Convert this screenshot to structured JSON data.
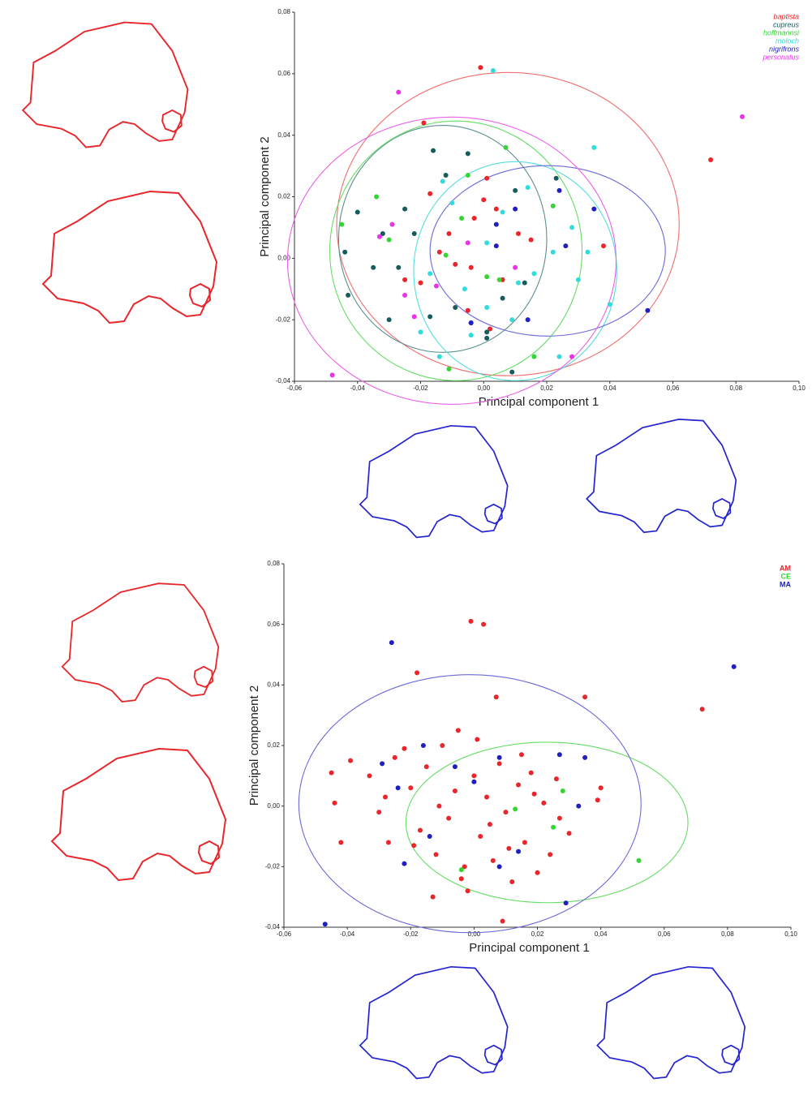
{
  "chart_data": [
    {
      "type": "scatter",
      "xlabel": "Principal component 1",
      "ylabel": "Principal component 2",
      "xlim": [
        -0.06,
        0.1
      ],
      "ylim": [
        -0.04,
        0.08
      ],
      "xticks": [
        {
          "value": -0.06,
          "label": "-0,06"
        },
        {
          "value": -0.04,
          "label": "-0,04"
        },
        {
          "value": -0.02,
          "label": "-0,02"
        },
        {
          "value": 0,
          "label": "0,00"
        },
        {
          "value": 0.02,
          "label": "0,02"
        },
        {
          "value": 0.04,
          "label": "0,04"
        },
        {
          "value": 0.06,
          "label": "0,06"
        },
        {
          "value": 0.08,
          "label": "0,08"
        },
        {
          "value": 0.1,
          "label": "0,10"
        }
      ],
      "yticks": [
        {
          "value": -0.04,
          "label": "-0,04"
        },
        {
          "value": -0.02,
          "label": "-0,02"
        },
        {
          "value": 0,
          "label": "0,00"
        },
        {
          "value": 0.02,
          "label": "0,02"
        },
        {
          "value": 0.04,
          "label": "0,04"
        },
        {
          "value": 0.06,
          "label": "0,06"
        },
        {
          "value": 0.08,
          "label": "0,08"
        }
      ],
      "legend": "top-right",
      "series": [
        {
          "name": "baptista",
          "color": "#e8262b",
          "ellipse_color": "#f07070",
          "x": [
            -0.001,
            -0.019,
            0.072,
            0.002,
            0.038,
            0.011,
            -0.003,
            -0.017,
            -0.025,
            0.004,
            -0.011,
            -0.004,
            0.006,
            0.015,
            0.0,
            -0.009,
            0.001,
            -0.014,
            -0.02,
            -0.005
          ],
          "values": [
            0.062,
            0.044,
            0.032,
            -0.023,
            0.004,
            0.008,
            0.013,
            0.021,
            -0.007,
            0.016,
            0.008,
            -0.003,
            -0.007,
            0.006,
            0.019,
            -0.002,
            0.026,
            0.002,
            -0.008,
            -0.017
          ],
          "ellipse": {
            "cx": 0.0077,
            "cy": 0.0111,
            "rx": 0.0543,
            "ry": 0.0493
          }
        },
        {
          "name": "cupreus",
          "color": "#175c5c",
          "ellipse_color": "#5c8f8f",
          "x": [
            -0.016,
            -0.005,
            0.01,
            0.023,
            -0.04,
            -0.044,
            -0.043,
            -0.03,
            -0.017,
            -0.012,
            -0.032,
            -0.027,
            0.001,
            0.009,
            -0.004,
            -0.022,
            -0.009,
            0.006,
            -0.035,
            -0.025,
            0.013,
            0.001
          ],
          "values": [
            0.035,
            0.034,
            0.022,
            0.026,
            0.015,
            0.002,
            -0.012,
            -0.02,
            -0.019,
            0.027,
            0.008,
            -0.003,
            -0.024,
            -0.037,
            -0.021,
            0.008,
            -0.016,
            -0.013,
            -0.003,
            0.016,
            -0.008,
            -0.026
          ],
          "ellipse": {
            "cx": -0.013,
            "cy": 0.0063,
            "rx": 0.033,
            "ry": 0.0369
          }
        },
        {
          "name": "hoffmannsi",
          "color": "#33d633",
          "ellipse_color": "#66dd66",
          "x": [
            0.007,
            -0.034,
            -0.045,
            -0.03,
            -0.012,
            -0.005,
            0.016,
            -0.011,
            0.005,
            0.022,
            -0.007,
            0.001
          ],
          "values": [
            0.036,
            0.02,
            0.011,
            0.006,
            0.001,
            0.027,
            -0.032,
            -0.036,
            -0.007,
            0.017,
            0.013,
            -0.006
          ],
          "ellipse": {
            "cx": -0.0088,
            "cy": 0.0024,
            "rx": 0.04,
            "ry": 0.0422
          }
        },
        {
          "name": "moloch",
          "color": "#33dcdc",
          "ellipse_color": "#55dddd",
          "x": [
            0.003,
            0.035,
            -0.013,
            0.001,
            0.011,
            -0.02,
            -0.004,
            0.024,
            0.04,
            0.03,
            0.016,
            0.006,
            -0.006,
            -0.014,
            0.009,
            0.022,
            0.014,
            -0.01,
            0.001,
            0.033,
            0.028,
            -0.017
          ],
          "values": [
            0.061,
            0.036,
            0.025,
            0.005,
            -0.008,
            -0.024,
            -0.025,
            -0.032,
            -0.015,
            -0.007,
            -0.005,
            0.015,
            -0.01,
            -0.032,
            -0.02,
            0.002,
            0.023,
            0.018,
            -0.016,
            0.002,
            0.01,
            -0.005
          ],
          "ellipse": {
            "cx": 0.01,
            "cy": -0.0042,
            "rx": 0.0322,
            "ry": 0.0356
          }
        },
        {
          "name": "nigrifrons",
          "color": "#2020c0",
          "ellipse_color": "#6a6ad8",
          "x": [
            0.052,
            0.035,
            0.024,
            0.004,
            -0.004,
            0.026,
            0.01,
            0.014,
            0.004
          ],
          "values": [
            -0.017,
            0.016,
            0.022,
            0.004,
            -0.021,
            0.004,
            0.016,
            -0.02,
            0.011
          ],
          "ellipse": {
            "cx": 0.0203,
            "cy": 0.0024,
            "rx": 0.0373,
            "ry": 0.0277
          }
        },
        {
          "name": "personatus",
          "color": "#ea32ea",
          "ellipse_color": "#ea60ea",
          "x": [
            -0.027,
            0.082,
            -0.048,
            0.028,
            -0.033,
            -0.029,
            -0.025,
            -0.015,
            -0.005,
            0.01,
            -0.022
          ],
          "values": [
            0.054,
            0.046,
            -0.038,
            -0.032,
            0.007,
            0.011,
            -0.012,
            -0.009,
            0.005,
            -0.003,
            -0.019
          ],
          "ellipse": {
            "cx": -0.0101,
            "cy": -0.0008,
            "rx": 0.0521,
            "ry": 0.0467
          }
        }
      ]
    },
    {
      "type": "scatter",
      "xlabel": "Principal component 1",
      "ylabel": "Principal component 2",
      "xlim": [
        -0.06,
        0.1
      ],
      "ylim": [
        -0.04,
        0.08
      ],
      "xticks": [
        {
          "value": -0.06,
          "label": "-0,06"
        },
        {
          "value": -0.04,
          "label": "-0,04"
        },
        {
          "value": -0.02,
          "label": "-0,02"
        },
        {
          "value": 0,
          "label": "0,00"
        },
        {
          "value": 0.02,
          "label": "0,02"
        },
        {
          "value": 0.04,
          "label": "0,04"
        },
        {
          "value": 0.06,
          "label": "0,06"
        },
        {
          "value": 0.08,
          "label": "0,08"
        },
        {
          "value": 0.1,
          "label": "0,10"
        }
      ],
      "yticks": [
        {
          "value": -0.04,
          "label": "-0,04"
        },
        {
          "value": -0.02,
          "label": "-0,02"
        },
        {
          "value": 0,
          "label": "0,00"
        },
        {
          "value": 0.02,
          "label": "0,02"
        },
        {
          "value": 0.04,
          "label": "0,04"
        },
        {
          "value": 0.06,
          "label": "0,06"
        },
        {
          "value": 0.08,
          "label": "0,08"
        }
      ],
      "legend": "top-right",
      "series": [
        {
          "name": "AM",
          "color": "#e8262b",
          "ellipse_color": "#f07070",
          "x": [
            -0.001,
            0.003,
            -0.018,
            0.072,
            0.007,
            0.035,
            -0.013,
            0.009,
            -0.045,
            -0.044,
            -0.042,
            -0.039,
            0.039,
            0.04,
            -0.033,
            -0.03,
            -0.027,
            -0.025,
            -0.02,
            -0.017,
            -0.015,
            -0.012,
            -0.01,
            -0.008,
            -0.005,
            -0.003,
            0.0,
            0.002,
            0.004,
            0.006,
            0.008,
            0.01,
            0.012,
            0.014,
            0.016,
            0.018,
            0.02,
            0.022,
            0.024,
            0.026,
            -0.022,
            -0.019,
            -0.006,
            0.005,
            0.015,
            0.03,
            -0.028,
            -0.004,
            0.011,
            0.019,
            -0.011,
            0.001,
            0.027,
            -0.002
          ],
          "values": [
            0.061,
            0.06,
            0.044,
            0.032,
            0.036,
            0.036,
            -0.03,
            -0.038,
            0.011,
            0.001,
            -0.012,
            0.015,
            0.002,
            0.006,
            0.01,
            -0.002,
            -0.012,
            0.016,
            0.006,
            -0.008,
            0.013,
            -0.016,
            0.02,
            -0.004,
            0.025,
            -0.02,
            0.01,
            -0.01,
            0.003,
            -0.018,
            0.014,
            -0.002,
            -0.025,
            0.007,
            -0.012,
            0.011,
            -0.022,
            0.001,
            -0.016,
            0.009,
            0.019,
            -0.013,
            0.005,
            -0.006,
            0.017,
            -0.009,
            0.003,
            -0.024,
            -0.014,
            0.004,
            0.0,
            0.022,
            -0.004,
            -0.028
          ]
        },
        {
          "name": "CE",
          "color": "#33d633",
          "ellipse_color": "#66dd66",
          "x": [
            0.052,
            0.013,
            -0.004,
            0.028,
            0.025
          ],
          "values": [
            -0.018,
            -0.001,
            -0.021,
            0.005,
            -0.007
          ],
          "ellipse": {
            "cx": 0.023,
            "cy": -0.0054,
            "rx": 0.0445,
            "ry": 0.0265
          }
        },
        {
          "name": "MA",
          "color": "#2020c0",
          "ellipse_color": "#6a6ad8",
          "x": [
            -0.026,
            0.082,
            -0.047,
            -0.016,
            -0.006,
            -0.024,
            -0.029,
            0.008,
            0.0,
            0.027,
            0.035,
            0.033,
            0.014,
            0.029,
            -0.022,
            -0.014,
            0.008
          ],
          "values": [
            0.054,
            0.046,
            -0.039,
            0.02,
            0.013,
            0.006,
            0.014,
            0.016,
            0.008,
            0.017,
            0.016,
            0.0,
            -0.015,
            -0.032,
            -0.019,
            -0.01,
            -0.02
          ],
          "ellipse": {
            "cx": -0.0013,
            "cy": 0.0008,
            "rx": 0.054,
            "ry": 0.0426
          }
        }
      ]
    }
  ]
}
